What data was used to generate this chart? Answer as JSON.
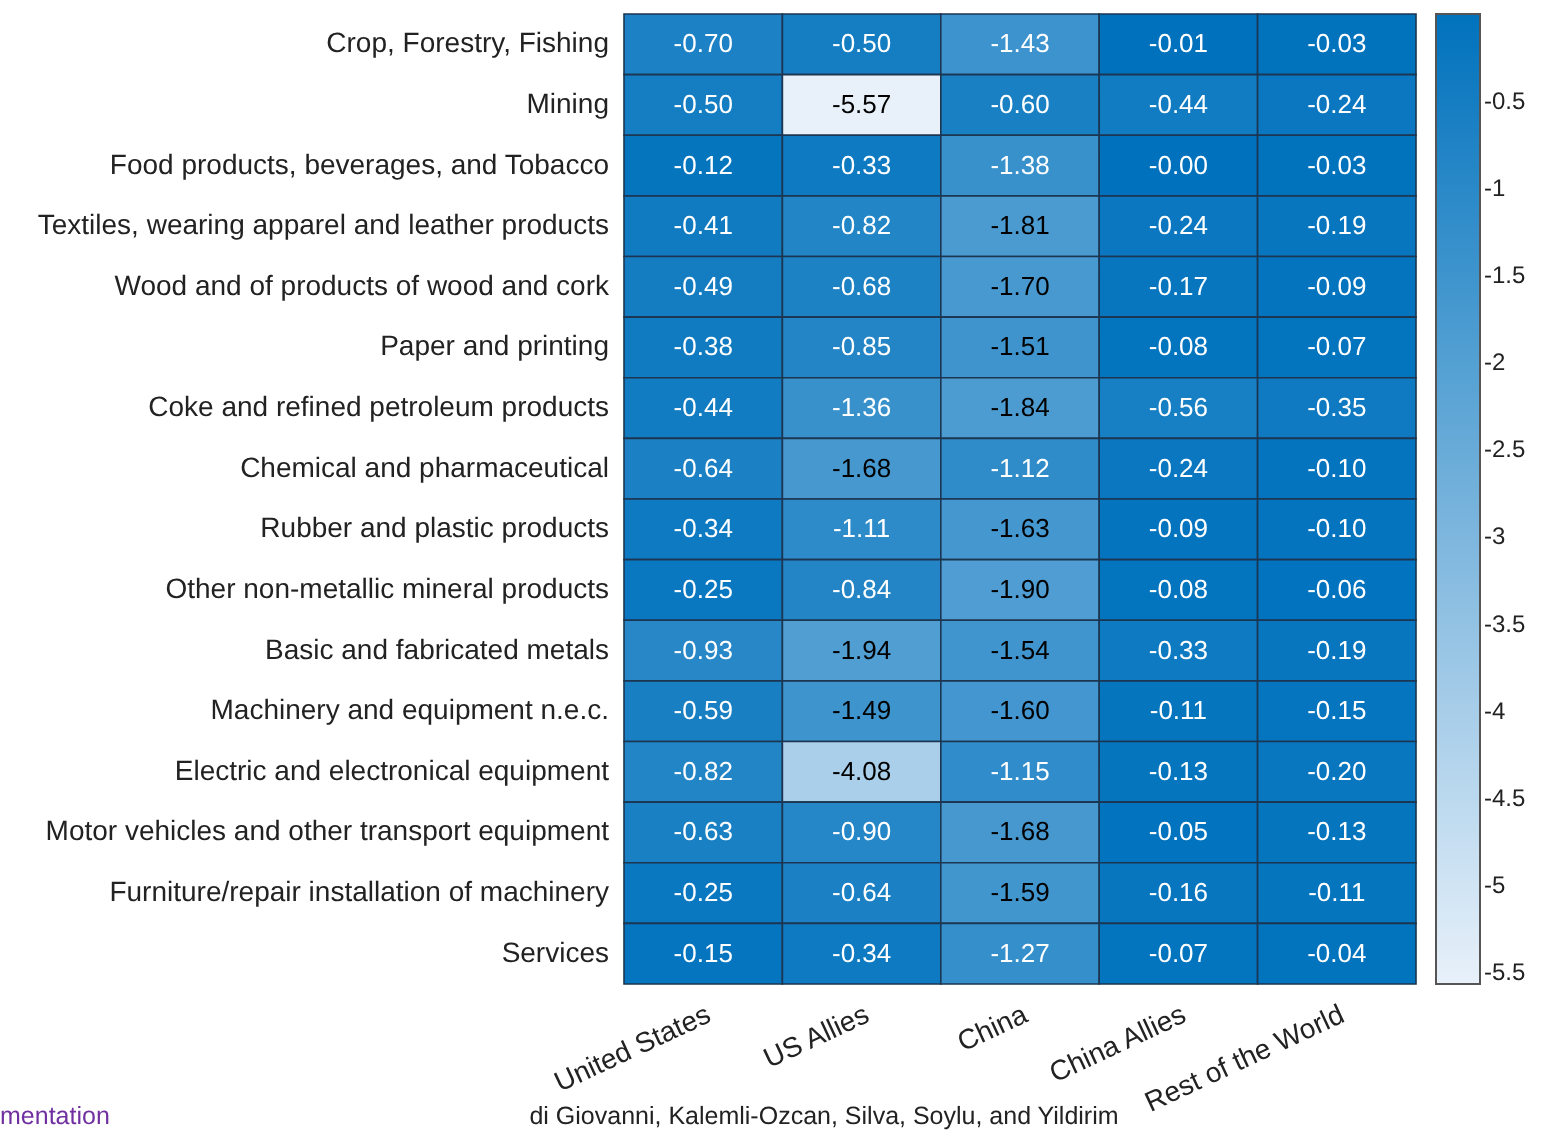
{
  "chart_data": {
    "type": "heatmap",
    "categories": [
      "United States",
      "US Allies",
      "China",
      "China Allies",
      "Rest of the World"
    ],
    "y_categories": [
      "Crop, Forestry, Fishing",
      "Mining",
      "Food products, beverages, and Tobacco",
      "Textiles, wearing apparel and leather products",
      "Wood and of products of wood and cork",
      "Paper and printing",
      "Coke and refined petroleum products",
      "Chemical and pharmaceutical",
      "Rubber and plastic products",
      "Other non-metallic mineral products",
      "Basic and fabricated metals",
      "Machinery and equipment n.e.c.",
      "Electric and electronical equipment",
      "Motor vehicles and other transport equipment",
      "Furniture/repair installation of machinery",
      "Services"
    ],
    "cells": [
      [
        -0.7,
        -0.5,
        -1.43,
        -0.01,
        -0.03
      ],
      [
        -0.5,
        -5.57,
        -0.6,
        -0.44,
        -0.24
      ],
      [
        -0.12,
        -0.33,
        -1.38,
        -0.0,
        -0.03
      ],
      [
        -0.41,
        -0.82,
        -1.81,
        -0.24,
        -0.19
      ],
      [
        -0.49,
        -0.68,
        -1.7,
        -0.17,
        -0.09
      ],
      [
        -0.38,
        -0.85,
        -1.51,
        -0.08,
        -0.07
      ],
      [
        -0.44,
        -1.36,
        -1.84,
        -0.56,
        -0.35
      ],
      [
        -0.64,
        -1.68,
        -1.12,
        -0.24,
        -0.1
      ],
      [
        -0.34,
        -1.11,
        -1.63,
        -0.09,
        -0.1
      ],
      [
        -0.25,
        -0.84,
        -1.9,
        -0.08,
        -0.06
      ],
      [
        -0.93,
        -1.94,
        -1.54,
        -0.33,
        -0.19
      ],
      [
        -0.59,
        -1.49,
        -1.6,
        -0.11,
        -0.15
      ],
      [
        -0.82,
        -4.08,
        -1.15,
        -0.13,
        -0.2
      ],
      [
        -0.63,
        -0.9,
        -1.68,
        -0.05,
        -0.13
      ],
      [
        -0.25,
        -0.64,
        -1.59,
        -0.16,
        -0.11
      ],
      [
        -0.15,
        -0.34,
        -1.27,
        -0.07,
        -0.04
      ]
    ],
    "cell_labels": [
      [
        "-0.70",
        "-0.50",
        "-1.43",
        "-0.01",
        "-0.03"
      ],
      [
        "-0.50",
        "-5.57",
        "-0.60",
        "-0.44",
        "-0.24"
      ],
      [
        "-0.12",
        "-0.33",
        "-1.38",
        "-0.00",
        "-0.03"
      ],
      [
        "-0.41",
        "-0.82",
        "-1.81",
        "-0.24",
        "-0.19"
      ],
      [
        "-0.49",
        "-0.68",
        "-1.70",
        "-0.17",
        "-0.09"
      ],
      [
        "-0.38",
        "-0.85",
        "-1.51",
        "-0.08",
        "-0.07"
      ],
      [
        "-0.44",
        "-1.36",
        "-1.84",
        "-0.56",
        "-0.35"
      ],
      [
        "-0.64",
        "-1.68",
        "-1.12",
        "-0.24",
        "-0.10"
      ],
      [
        "-0.34",
        "-1.11",
        "-1.63",
        "-0.09",
        "-0.10"
      ],
      [
        "-0.25",
        "-0.84",
        "-1.90",
        "-0.08",
        "-0.06"
      ],
      [
        "-0.93",
        "-1.94",
        "-1.54",
        "-0.33",
        "-0.19"
      ],
      [
        "-0.59",
        "-1.49",
        "-1.60",
        "-0.11",
        "-0.15"
      ],
      [
        "-0.82",
        "-4.08",
        "-1.15",
        "-0.13",
        "-0.20"
      ],
      [
        "-0.63",
        "-0.90",
        "-1.68",
        "-0.05",
        "-0.13"
      ],
      [
        "-0.25",
        "-0.64",
        "-1.59",
        "-0.16",
        "-0.11"
      ],
      [
        "-0.15",
        "-0.34",
        "-1.27",
        "-0.07",
        "-0.04"
      ]
    ],
    "clim": [
      -5.57,
      0
    ],
    "cticks": [
      -0.5,
      -1,
      -1.5,
      -2,
      -2.5,
      -3,
      -3.5,
      -4,
      -4.5,
      -5,
      -5.5
    ],
    "annotations": [
      "mentation",
      "di Giovanni, Kalemli-Ozcan, Silva, Soylu, and Yildirim"
    ]
  }
}
